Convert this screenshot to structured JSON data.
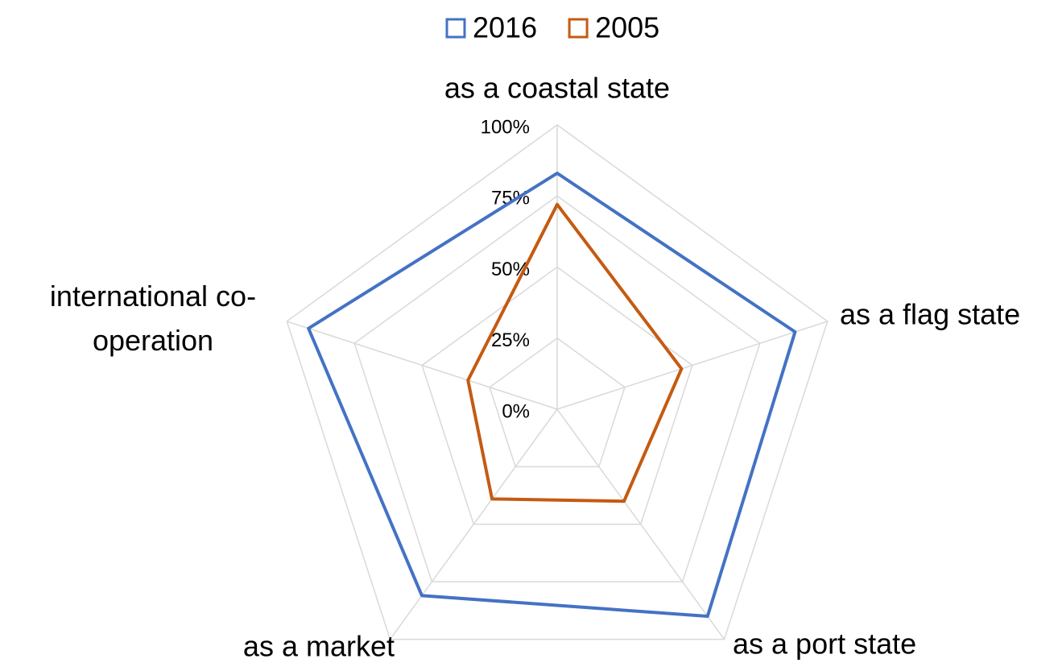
{
  "chart_data": {
    "type": "radar",
    "categories": [
      "as a coastal state",
      "as a flag state",
      "as a port state",
      "as a market",
      "international co-operation"
    ],
    "series": [
      {
        "name": "2016",
        "color": "#4472c4",
        "values": [
          83,
          88,
          90,
          81,
          92
        ]
      },
      {
        "name": "2005",
        "color": "#c55a11",
        "values": [
          72,
          46,
          40,
          39,
          33
        ]
      }
    ],
    "ylim": [
      0,
      100
    ],
    "yticks": [
      {
        "value": 0,
        "label": "0%"
      },
      {
        "value": 25,
        "label": "25%"
      },
      {
        "value": 50,
        "label": "50%"
      },
      {
        "value": 75,
        "label": "75%"
      },
      {
        "value": 100,
        "label": "100%"
      }
    ],
    "grid": true,
    "legend": "top"
  }
}
